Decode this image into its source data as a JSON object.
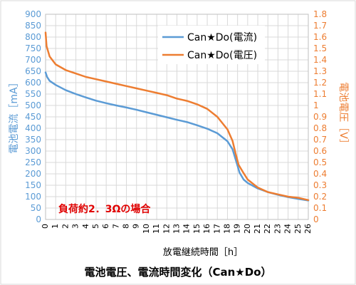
{
  "chart_data": {
    "type": "line",
    "title": "電池電圧、電流時間変化（Can★Do）",
    "xlabel": "放電継続時間［h］",
    "ylabel_left": "電池電流［mA］",
    "ylabel_right": "電池電圧［V］",
    "annotation": "負荷約2．3Ωの場合",
    "x_ticks": [
      "0",
      "1",
      "2",
      "3",
      "4",
      "5",
      "6",
      "7",
      "8",
      "9",
      "10",
      "11",
      "12",
      "13",
      "14",
      "15",
      "16",
      "17",
      "18",
      "19",
      "20",
      "21",
      "22",
      "23",
      "24",
      "25",
      "26"
    ],
    "y_left_ticks": [
      "0",
      "50",
      "100",
      "150",
      "200",
      "250",
      "300",
      "350",
      "400",
      "450",
      "500",
      "550",
      "600",
      "650",
      "700",
      "750",
      "800",
      "850",
      "900"
    ],
    "y_right_ticks": [
      "0",
      "0.1",
      "0.2",
      "0.3",
      "0.4",
      "0.5",
      "0.6",
      "0.7",
      "0.8",
      "0.9",
      "1",
      "1.1",
      "1.2",
      "1.3",
      "1.4",
      "1.5",
      "1.6",
      "1.7",
      "1.8"
    ],
    "xlim": [
      0,
      26
    ],
    "ylim_left": [
      0,
      900
    ],
    "ylim_right": [
      0,
      1.8
    ],
    "grid": true,
    "legend_position": "top-right",
    "series": [
      {
        "name": "Can★Do(電流)",
        "axis": "left",
        "color": "#5B9BD5",
        "points": [
          [
            0,
            645
          ],
          [
            0.15,
            625
          ],
          [
            0.4,
            608
          ],
          [
            1,
            590
          ],
          [
            2,
            567
          ],
          [
            3,
            550
          ],
          [
            4,
            535
          ],
          [
            5,
            521
          ],
          [
            6,
            510
          ],
          [
            7,
            500
          ],
          [
            8,
            491
          ],
          [
            9,
            481
          ],
          [
            10,
            470
          ],
          [
            11,
            459
          ],
          [
            12,
            448
          ],
          [
            13,
            437
          ],
          [
            14,
            427
          ],
          [
            15,
            413
          ],
          [
            16,
            398
          ],
          [
            17,
            378
          ],
          [
            18,
            343
          ],
          [
            18.5,
            308
          ],
          [
            18.9,
            250
          ],
          [
            19.2,
            205
          ],
          [
            19.6,
            175
          ],
          [
            20,
            160
          ],
          [
            21,
            136
          ],
          [
            22,
            120
          ],
          [
            23,
            108
          ],
          [
            24,
            98
          ],
          [
            25,
            90
          ],
          [
            26,
            83
          ]
        ]
      },
      {
        "name": "Can★Do(電圧)",
        "axis": "right",
        "color": "#ED7D31",
        "points": [
          [
            0,
            1.64
          ],
          [
            0.1,
            1.52
          ],
          [
            0.4,
            1.43
          ],
          [
            1,
            1.36
          ],
          [
            2,
            1.31
          ],
          [
            3,
            1.28
          ],
          [
            4,
            1.25
          ],
          [
            5,
            1.23
          ],
          [
            6,
            1.21
          ],
          [
            7,
            1.19
          ],
          [
            8,
            1.17
          ],
          [
            9,
            1.15
          ],
          [
            10,
            1.13
          ],
          [
            11,
            1.11
          ],
          [
            12,
            1.09
          ],
          [
            13,
            1.06
          ],
          [
            14,
            1.04
          ],
          [
            15,
            1.01
          ],
          [
            16,
            0.97
          ],
          [
            17,
            0.9
          ],
          [
            18,
            0.79
          ],
          [
            18.5,
            0.69
          ],
          [
            18.8,
            0.58
          ],
          [
            19.1,
            0.48
          ],
          [
            19.5,
            0.42
          ],
          [
            20,
            0.35
          ],
          [
            21,
            0.28
          ],
          [
            22,
            0.24
          ],
          [
            23,
            0.22
          ],
          [
            24,
            0.2
          ],
          [
            25,
            0.19
          ],
          [
            26,
            0.17
          ]
        ]
      }
    ]
  }
}
